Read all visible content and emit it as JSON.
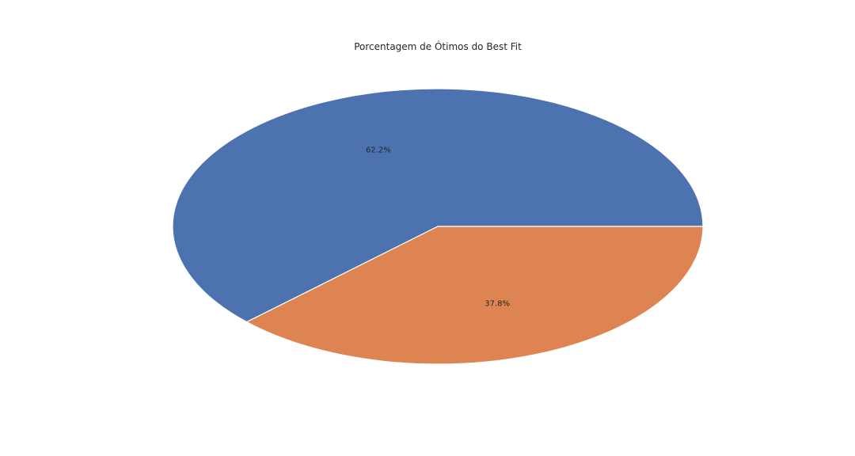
{
  "chart_data": {
    "type": "pie",
    "title": "Porcentagem de Ótimos do Best Fit",
    "slices": [
      {
        "value": 62.2,
        "label": "62.2%",
        "color": "#4c72b0"
      },
      {
        "value": 37.8,
        "label": "37.8%",
        "color": "#dd8452"
      }
    ],
    "start_angle_deg": 0,
    "direction": "counterclockwise",
    "legend": "none",
    "edge_color": "#ffffff"
  }
}
